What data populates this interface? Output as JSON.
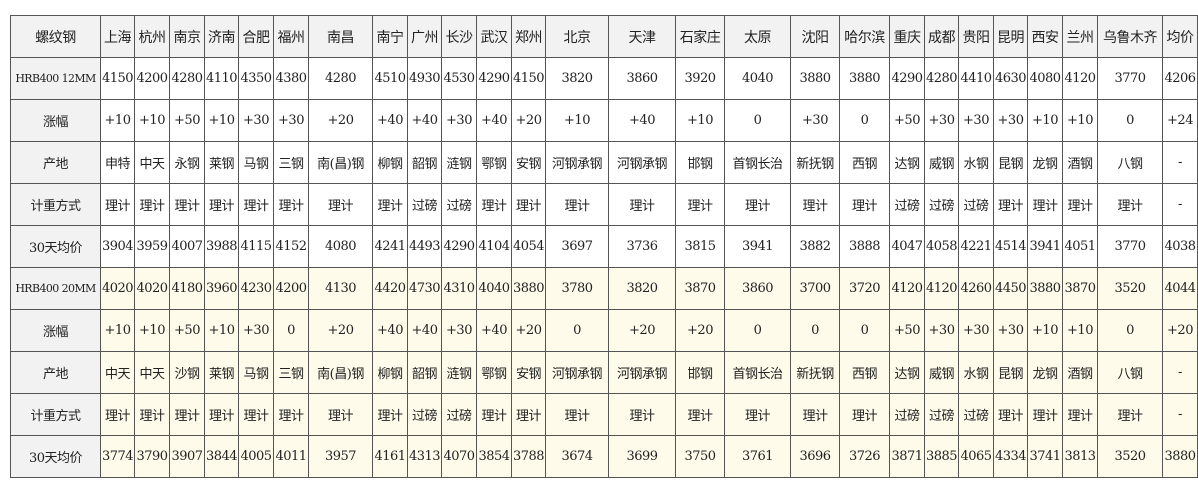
{
  "table": {
    "corner": "螺纹钢",
    "headers": [
      "上海",
      "杭州",
      "南京",
      "济南",
      "合肥",
      "福州",
      "南昌",
      "南宁",
      "广州",
      "长沙",
      "武汉",
      "郑州",
      "北京",
      "天津",
      "石家庄",
      "太原",
      "沈阳",
      "哈尔滨",
      "重庆",
      "成都",
      "贵阳",
      "昆明",
      "西安",
      "兰州",
      "乌鲁木齐",
      "均价"
    ],
    "rows": [
      {
        "label": "HRB400 12MM",
        "block": "b12",
        "cells": [
          "4150",
          "4200",
          "4280",
          "4110",
          "4350",
          "4380",
          "4280",
          "4510",
          "4930",
          "4530",
          "4290",
          "4150",
          "3820",
          "3860",
          "3920",
          "4040",
          "3880",
          "3880",
          "4290",
          "4280",
          "4410",
          "4630",
          "4080",
          "4120",
          "3770",
          "4206"
        ]
      },
      {
        "label": "涨幅",
        "block": "b12",
        "cells": [
          "+10",
          "+10",
          "+50",
          "+10",
          "+30",
          "+30",
          "+20",
          "+40",
          "+40",
          "+30",
          "+40",
          "+20",
          "+10",
          "+40",
          "+10",
          "0",
          "+30",
          "0",
          "+50",
          "+30",
          "+30",
          "+30",
          "+10",
          "+10",
          "0",
          "+24"
        ]
      },
      {
        "label": "产地",
        "block": "b12",
        "cells": [
          "申特",
          "中天",
          "永钢",
          "莱钢",
          "马钢",
          "三钢",
          "南(昌)钢",
          "柳钢",
          "韶钢",
          "涟钢",
          "鄂钢",
          "安钢",
          "河钢承钢",
          "河钢承钢",
          "邯钢",
          "首钢长治",
          "新抚钢",
          "西钢",
          "达钢",
          "威钢",
          "水钢",
          "昆钢",
          "龙钢",
          "酒钢",
          "八钢",
          "-"
        ]
      },
      {
        "label": "计重方式",
        "block": "b12",
        "cells": [
          "理计",
          "理计",
          "理计",
          "理计",
          "理计",
          "理计",
          "理计",
          "理计",
          "过磅",
          "过磅",
          "理计",
          "理计",
          "理计",
          "理计",
          "理计",
          "理计",
          "理计",
          "理计",
          "过磅",
          "过磅",
          "过磅",
          "理计",
          "理计",
          "理计",
          "理计",
          "-"
        ]
      },
      {
        "label": "30天均价",
        "block": "b12",
        "cells": [
          "3904",
          "3959",
          "4007",
          "3988",
          "4115",
          "4152",
          "4080",
          "4241",
          "4493",
          "4290",
          "4104",
          "4054",
          "3697",
          "3736",
          "3815",
          "3941",
          "3882",
          "3888",
          "4047",
          "4058",
          "4221",
          "4514",
          "3941",
          "4051",
          "3770",
          "4038"
        ]
      },
      {
        "label": "HRB400 20MM",
        "block": "b20",
        "cells": [
          "4020",
          "4020",
          "4180",
          "3960",
          "4230",
          "4200",
          "4130",
          "4420",
          "4730",
          "4310",
          "4040",
          "3880",
          "3780",
          "3820",
          "3870",
          "3860",
          "3700",
          "3720",
          "4120",
          "4120",
          "4260",
          "4450",
          "3880",
          "3870",
          "3520",
          "4044"
        ]
      },
      {
        "label": "涨幅",
        "block": "b20",
        "cells": [
          "+10",
          "+10",
          "+50",
          "+10",
          "+30",
          "0",
          "+20",
          "+40",
          "+40",
          "+30",
          "+40",
          "+20",
          "0",
          "+20",
          "+20",
          "0",
          "0",
          "0",
          "+50",
          "+30",
          "+30",
          "+30",
          "+10",
          "+10",
          "0",
          "+20"
        ]
      },
      {
        "label": "产地",
        "block": "b20",
        "cells": [
          "中天",
          "中天",
          "沙钢",
          "莱钢",
          "马钢",
          "三钢",
          "南(昌)钢",
          "柳钢",
          "韶钢",
          "涟钢",
          "鄂钢",
          "安钢",
          "河钢承钢",
          "河钢承钢",
          "邯钢",
          "首钢长治",
          "新抚钢",
          "西钢",
          "达钢",
          "威钢",
          "水钢",
          "昆钢",
          "龙钢",
          "酒钢",
          "八钢",
          "-"
        ]
      },
      {
        "label": "计重方式",
        "block": "b20",
        "cells": [
          "理计",
          "理计",
          "理计",
          "理计",
          "理计",
          "理计",
          "理计",
          "理计",
          "过磅",
          "过磅",
          "理计",
          "理计",
          "理计",
          "理计",
          "理计",
          "理计",
          "理计",
          "理计",
          "过磅",
          "过磅",
          "过磅",
          "理计",
          "理计",
          "理计",
          "理计",
          "-"
        ]
      },
      {
        "label": "30天均价",
        "block": "b20",
        "cells": [
          "3774",
          "3790",
          "3907",
          "3844",
          "4005",
          "4011",
          "3957",
          "4161",
          "4313",
          "4070",
          "3854",
          "3788",
          "3674",
          "3699",
          "3750",
          "3761",
          "3696",
          "3726",
          "3871",
          "3885",
          "4065",
          "4334",
          "3741",
          "3813",
          "3520",
          "3880"
        ]
      }
    ]
  },
  "colors": {
    "header_bg": "#f2f2f2",
    "block_12mm_bg": "#ffffff",
    "block_20mm_bg": "#fefbea",
    "border": "#555555"
  }
}
